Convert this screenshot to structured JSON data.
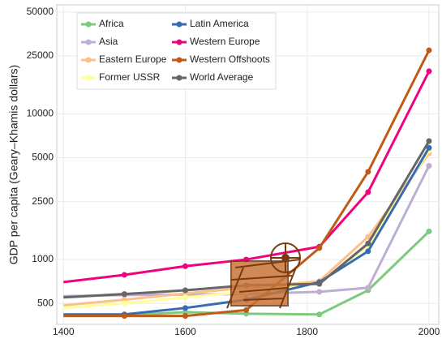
{
  "chart_data": {
    "type": "line",
    "y_label": "GDP per capita (Geary–Khamis dollars)",
    "x": [
      1400,
      1500,
      1600,
      1700,
      1820,
      1900,
      2000
    ],
    "xlim": [
      1389,
      2016
    ],
    "xticks": [
      1400,
      1600,
      1800,
      2000
    ],
    "ylim": [
      359,
      56000
    ],
    "yticks": [
      500,
      1000,
      2500,
      5000,
      10000,
      25000,
      50000
    ],
    "log_y": true,
    "grid": true,
    "legend": "top-left",
    "series": [
      {
        "name": "Africa",
        "color": "#7fc97f",
        "values": [
          410,
          415,
          435,
          425,
          420,
          615,
          1560
        ]
      },
      {
        "name": "Asia",
        "color": "#beaed4",
        "values": [
          560,
          570,
          575,
          580,
          600,
          640,
          4400
        ]
      },
      {
        "name": "Eastern Europe",
        "color": "#fdc086",
        "values": [
          485,
          530,
          585,
          640,
          710,
          1430,
          5350
        ]
      },
      {
        "name": "Former USSR",
        "color": "#ffff99",
        "values": [
          465,
          500,
          550,
          600,
          690,
          1250,
          5600
        ]
      },
      {
        "name": "Latin America",
        "color": "#386cb0",
        "values": [
          420,
          420,
          465,
          530,
          700,
          1140,
          5850
        ]
      },
      {
        "name": "Western Europe",
        "color": "#f0027f",
        "values": [
          700,
          785,
          900,
          1000,
          1225,
          2900,
          19600
        ]
      },
      {
        "name": "Western Offshoots",
        "color": "#bf5b17",
        "values": [
          410,
          410,
          410,
          450,
          1200,
          4000,
          27300
        ]
      },
      {
        "name": "World Average",
        "color": "#666666",
        "values": [
          550,
          580,
          615,
          665,
          680,
          1290,
          6500
        ]
      }
    ]
  }
}
